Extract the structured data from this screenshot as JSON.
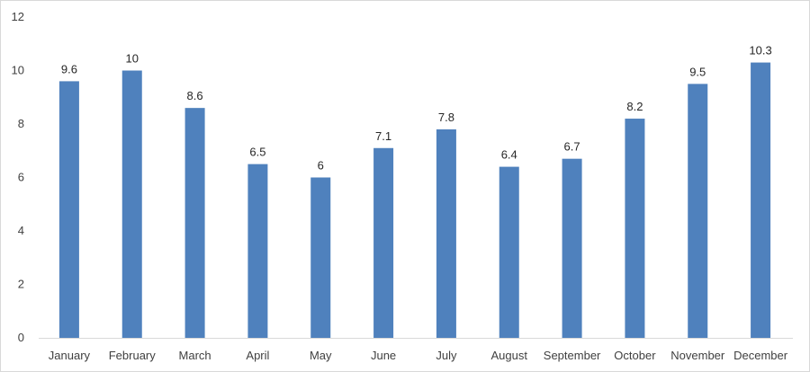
{
  "chart_data": {
    "type": "bar",
    "categories": [
      "January",
      "February",
      "March",
      "April",
      "May",
      "June",
      "July",
      "August",
      "September",
      "October",
      "November",
      "December"
    ],
    "values": [
      9.6,
      10,
      8.6,
      6.5,
      6,
      7.1,
      7.8,
      6.4,
      6.7,
      8.2,
      9.5,
      10.3
    ],
    "data_labels": [
      "9.6",
      "10",
      "8.6",
      "6.5",
      "6",
      "7.1",
      "7.8",
      "6.4",
      "6.7",
      "8.2",
      "9.5",
      "10.3"
    ],
    "y_ticks": [
      "0",
      "2",
      "4",
      "6",
      "8",
      "10",
      "12"
    ],
    "ylim": [
      0,
      12
    ],
    "grid": false,
    "legend": "none",
    "bar_color": "#4f81bd",
    "axis_color": "#d9d9d9"
  }
}
